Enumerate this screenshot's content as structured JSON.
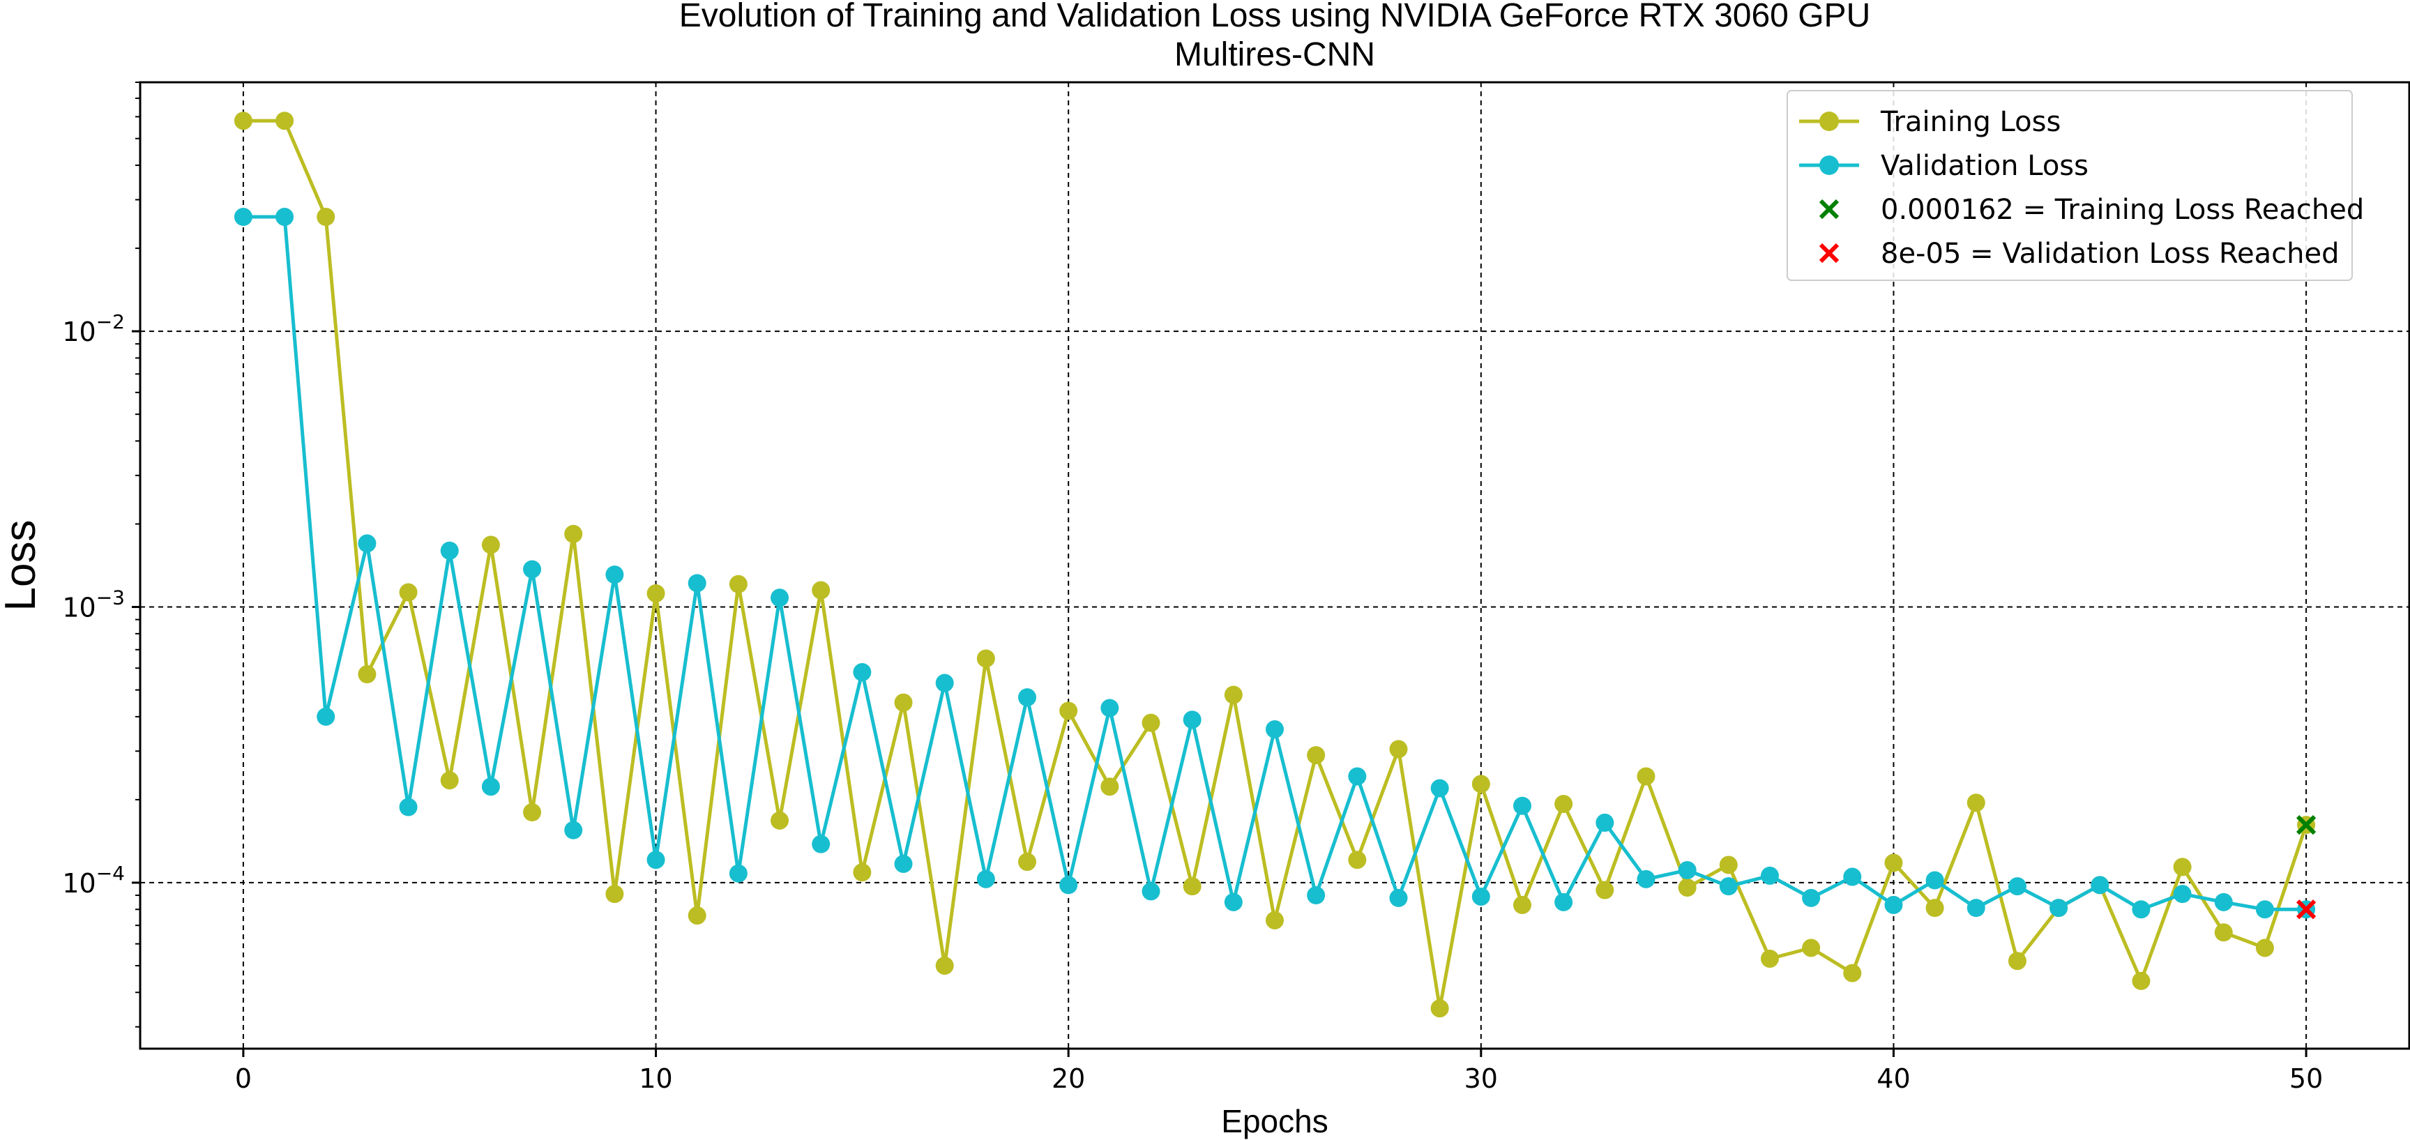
{
  "chart_data": {
    "type": "line",
    "title": "Evolution of Training and Validation Loss using NVIDIA GeForce RTX 3060 GPU",
    "subtitle": "Multires-CNN",
    "xlabel": "Epochs",
    "ylabel": "Loss",
    "yscale": "log",
    "xlim": [
      -2.5,
      52.5
    ],
    "ylim": [
      2.5e-05,
      0.08
    ],
    "xticks": [
      0,
      10,
      20,
      30,
      40,
      50
    ],
    "yticks": [
      {
        "value": 0.01,
        "base": "10",
        "exp": "−2"
      },
      {
        "value": 0.001,
        "base": "10",
        "exp": "−3"
      },
      {
        "value": 0.0001,
        "base": "10",
        "exp": "−4"
      }
    ],
    "grid": true,
    "legend_position": "top-right",
    "series": [
      {
        "name": "Training Loss",
        "color": "#bcbd22",
        "x": [
          0,
          1,
          2,
          3,
          4,
          5,
          6,
          7,
          8,
          9,
          10,
          11,
          12,
          13,
          14,
          15,
          16,
          17,
          18,
          19,
          20,
          21,
          22,
          23,
          24,
          25,
          26,
          27,
          28,
          29,
          30,
          31,
          32,
          33,
          34,
          35,
          36,
          37,
          38,
          39,
          40,
          41,
          42,
          43,
          44,
          45,
          46,
          47,
          48,
          49,
          50
        ],
        "values": [
          0.058,
          0.058,
          0.026,
          0.00057,
          0.00113,
          0.000235,
          0.00168,
          0.00018,
          0.00184,
          9.1e-05,
          0.00112,
          7.6e-05,
          0.00121,
          0.000168,
          0.00115,
          0.000109,
          0.00045,
          5e-05,
          0.00065,
          0.000119,
          0.00042,
          0.000223,
          0.00038,
          9.7e-05,
          0.00048,
          7.3e-05,
          0.00029,
          0.000121,
          0.000305,
          3.5e-05,
          0.000228,
          8.3e-05,
          0.000193,
          9.4e-05,
          0.000243,
          9.6e-05,
          0.000116,
          5.3e-05,
          5.8e-05,
          4.7e-05,
          0.000118,
          8.1e-05,
          0.000195,
          5.2e-05,
          8.1e-05,
          9.8e-05,
          4.4e-05,
          0.000114,
          6.6e-05,
          5.8e-05,
          0.000162
        ]
      },
      {
        "name": "Validation Loss",
        "color": "#17becf",
        "x": [
          0,
          1,
          2,
          3,
          4,
          5,
          6,
          7,
          8,
          9,
          10,
          11,
          12,
          13,
          14,
          15,
          16,
          17,
          18,
          19,
          20,
          21,
          22,
          23,
          24,
          25,
          26,
          27,
          28,
          29,
          30,
          31,
          32,
          33,
          34,
          35,
          36,
          37,
          38,
          39,
          40,
          41,
          42,
          43,
          44,
          45,
          46,
          47,
          48,
          49,
          50
        ],
        "values": [
          0.026,
          0.026,
          0.0004,
          0.0017,
          0.000188,
          0.0016,
          0.000223,
          0.00137,
          0.000155,
          0.00131,
          0.000121,
          0.00122,
          0.000108,
          0.00108,
          0.000138,
          0.00058,
          0.000117,
          0.00053,
          0.000103,
          0.00047,
          9.8e-05,
          0.00043,
          9.3e-05,
          0.00039,
          8.5e-05,
          0.00036,
          9e-05,
          0.000243,
          8.8e-05,
          0.00022,
          8.9e-05,
          0.00019,
          8.5e-05,
          0.000165,
          0.000103,
          0.000111,
          9.7e-05,
          0.000106,
          8.8e-05,
          0.000105,
          8.3e-05,
          0.000102,
          8.1e-05,
          9.7e-05,
          8.1e-05,
          9.8e-05,
          8e-05,
          9.1e-05,
          8.5e-05,
          8e-05,
          8e-05
        ]
      }
    ],
    "markers": [
      {
        "name": "0.000162 = Training Loss Reached",
        "x": 50,
        "y": 0.000162,
        "color": "#008000"
      },
      {
        "name": "8e-05 = Validation Loss Reached",
        "x": 50,
        "y": 8e-05,
        "color": "#ff0000"
      }
    ]
  }
}
